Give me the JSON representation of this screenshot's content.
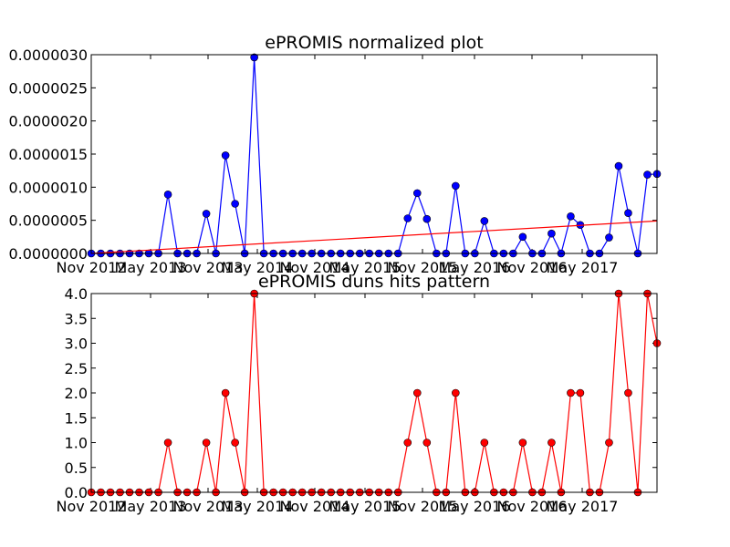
{
  "chart_data": [
    {
      "type": "line",
      "title": "ePROMIS normalized plot",
      "xlabel": "",
      "ylabel": "",
      "x_tick_labels": [
        "Nov 2012",
        "May 2013",
        "Nov 2013",
        "May 2014",
        "Nov 2014",
        "May 2015",
        "Nov 2015",
        "May 2016",
        "Nov 2016",
        "May 2017"
      ],
      "y_tick_labels": [
        "0.0000000",
        "0.0000005",
        "0.0000010",
        "0.0000015",
        "0.0000020",
        "0.0000025",
        "0.0000030"
      ],
      "ylim": [
        0,
        3e-06
      ],
      "grid": false,
      "series": [
        {
          "color": "#0000ff",
          "marker_color": "#0000ff",
          "values": [
            0,
            0,
            0,
            0,
            0,
            0,
            0,
            0,
            8.9e-07,
            0,
            0,
            0,
            6e-07,
            0,
            1.48e-06,
            7.5e-07,
            0,
            2.96e-06,
            0,
            0,
            0,
            0,
            0,
            0,
            0,
            0,
            0,
            0,
            0,
            0,
            0,
            0,
            0,
            5.3e-07,
            9.1e-07,
            5.2e-07,
            0,
            0,
            1.02e-06,
            0,
            0,
            4.9e-07,
            0,
            0,
            0,
            2.5e-07,
            0,
            0,
            3e-07,
            0,
            5.6e-07,
            4.3e-07,
            0,
            0,
            2.4e-07,
            1.32e-06,
            6.1e-07,
            0,
            1.19e-06,
            1.2e-06
          ]
        },
        {
          "color": "#ff0000",
          "marker": "none",
          "values_trend": [
            0,
            4.9e-07
          ]
        }
      ]
    },
    {
      "type": "line",
      "title": "ePROMIS duns hits pattern",
      "xlabel": "",
      "ylabel": "",
      "x_tick_labels": [
        "Nov 2012",
        "May 2013",
        "Nov 2013",
        "May 2014",
        "Nov 2014",
        "May 2015",
        "Nov 2015",
        "May 2016",
        "Nov 2016",
        "May 2017"
      ],
      "y_tick_labels": [
        "0.0",
        "0.5",
        "1.0",
        "1.5",
        "2.0",
        "2.5",
        "3.0",
        "3.5",
        "4.0"
      ],
      "ylim": [
        0,
        4
      ],
      "grid": false,
      "series": [
        {
          "color": "#ff0000",
          "marker_color": "#ff0000",
          "values": [
            0,
            0,
            0,
            0,
            0,
            0,
            0,
            0,
            1,
            0,
            0,
            0,
            1,
            0,
            2,
            1,
            0,
            4,
            0,
            0,
            0,
            0,
            0,
            0,
            0,
            0,
            0,
            0,
            0,
            0,
            0,
            0,
            0,
            1,
            2,
            1,
            0,
            0,
            2,
            0,
            0,
            1,
            0,
            0,
            0,
            1,
            0,
            0,
            1,
            0,
            2,
            2,
            0,
            0,
            1,
            4,
            2,
            0,
            4,
            3
          ]
        }
      ]
    }
  ]
}
